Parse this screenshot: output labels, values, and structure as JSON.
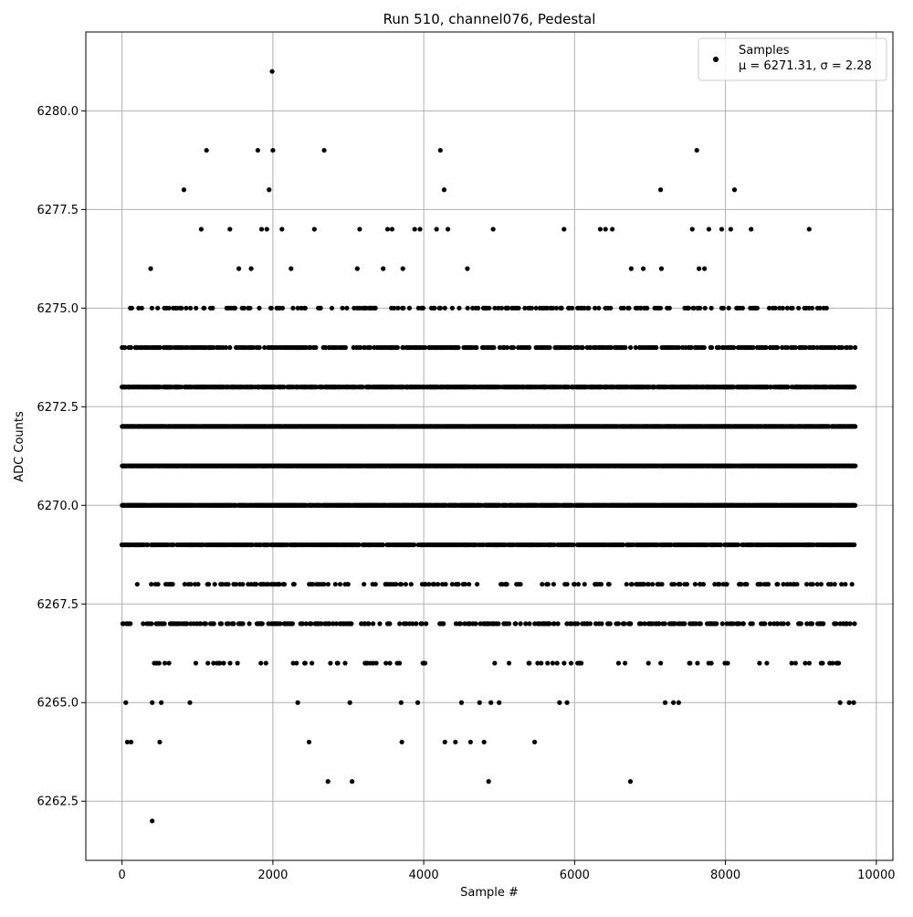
{
  "chart_data": {
    "type": "scatter",
    "title": "Run 510, channel076, Pedestal",
    "xlabel": "Sample #",
    "ylabel": "ADC Counts",
    "xlim": [
      -480,
      10220
    ],
    "ylim": [
      6261.0,
      6282.0
    ],
    "x_ticks": [
      0,
      2000,
      4000,
      6000,
      8000,
      10000
    ],
    "x_tick_labels": [
      "0",
      "2000",
      "4000",
      "6000",
      "8000",
      "10000"
    ],
    "y_ticks": [
      6262.5,
      6265.0,
      6267.5,
      6270.0,
      6272.5,
      6275.0,
      6277.5,
      6280.0
    ],
    "y_tick_labels": [
      "6262.5",
      "6265.0",
      "6267.5",
      "6270.0",
      "6272.5",
      "6275.0",
      "6277.5",
      "6280.0"
    ],
    "grid": true,
    "legend": {
      "position": "top-right",
      "series_label": "Samples",
      "stats_label": "μ = 6271.31, σ = 2.28"
    },
    "marker_color": "#000000",
    "series": [
      {
        "name": "Samples",
        "points": [
          [
            1990,
            6281
          ],
          [
            1120,
            6279
          ],
          [
            1800,
            6279
          ],
          [
            2000,
            6279
          ],
          [
            2680,
            6279
          ],
          [
            4220,
            6279
          ],
          [
            7620,
            6279
          ],
          [
            820,
            6278
          ],
          [
            1950,
            6278
          ],
          [
            4270,
            6278
          ],
          [
            7140,
            6278
          ],
          [
            8120,
            6278
          ],
          [
            1050,
            6277
          ],
          [
            1430,
            6277
          ],
          [
            1850,
            6277
          ],
          [
            1920,
            6277
          ],
          [
            2120,
            6277
          ],
          [
            2550,
            6277
          ],
          [
            3150,
            6277
          ],
          [
            3520,
            6277
          ],
          [
            3580,
            6277
          ],
          [
            3880,
            6277
          ],
          [
            3950,
            6277
          ],
          [
            4170,
            6277
          ],
          [
            4320,
            6277
          ],
          [
            4920,
            6277
          ],
          [
            5860,
            6277
          ],
          [
            6340,
            6277
          ],
          [
            6410,
            6277
          ],
          [
            6500,
            6277
          ],
          [
            7560,
            6277
          ],
          [
            7780,
            6277
          ],
          [
            7950,
            6277
          ],
          [
            8070,
            6277
          ],
          [
            8340,
            6277
          ],
          [
            9110,
            6277
          ],
          [
            400,
            6262
          ],
          [
            2730,
            6263
          ],
          [
            3050,
            6263
          ],
          [
            4860,
            6263
          ],
          [
            6740,
            6263
          ],
          [
            70,
            6264
          ],
          [
            120,
            6264
          ],
          [
            500,
            6264
          ],
          [
            2480,
            6264
          ],
          [
            3710,
            6264
          ],
          [
            4280,
            6264
          ],
          [
            4420,
            6264
          ],
          [
            4620,
            6264
          ],
          [
            4800,
            6264
          ],
          [
            5470,
            6264
          ],
          [
            50,
            6265
          ],
          [
            400,
            6265
          ],
          [
            520,
            6265
          ],
          [
            900,
            6265
          ],
          [
            2330,
            6265
          ],
          [
            3020,
            6265
          ],
          [
            3700,
            6265
          ],
          [
            3920,
            6265
          ],
          [
            4500,
            6265
          ],
          [
            4740,
            6265
          ],
          [
            4890,
            6265
          ],
          [
            5000,
            6265
          ],
          [
            5800,
            6265
          ],
          [
            5900,
            6265
          ],
          [
            7200,
            6265
          ],
          [
            7310,
            6265
          ],
          [
            7380,
            6265
          ],
          [
            9520,
            6265
          ],
          [
            9640,
            6265
          ],
          [
            9700,
            6265
          ]
        ]
      }
    ],
    "dense_bands": [
      {
        "y": 6276,
        "x_start": 250,
        "x_end": 9180,
        "density": 0.012
      },
      {
        "y": 6275,
        "x_start": 30,
        "x_end": 9370,
        "density": 0.18
      },
      {
        "y": 6274,
        "x_start": 0,
        "x_end": 9720,
        "density": 0.4
      },
      {
        "y": 6273,
        "x_start": 0,
        "x_end": 9720,
        "density": 0.75
      },
      {
        "y": 6272,
        "x_start": 0,
        "x_end": 9720,
        "density": 0.92
      },
      {
        "y": 6271,
        "x_start": 0,
        "x_end": 9720,
        "density": 0.95
      },
      {
        "y": 6270,
        "x_start": 0,
        "x_end": 9720,
        "density": 0.9
      },
      {
        "y": 6269,
        "x_start": 0,
        "x_end": 9720,
        "density": 0.6
      },
      {
        "y": 6268,
        "x_start": 40,
        "x_end": 9700,
        "density": 0.16
      },
      {
        "y": 6267,
        "x_start": 0,
        "x_end": 9720,
        "density": 0.3
      },
      {
        "y": 6266,
        "x_start": 40,
        "x_end": 9720,
        "density": 0.05
      }
    ]
  }
}
